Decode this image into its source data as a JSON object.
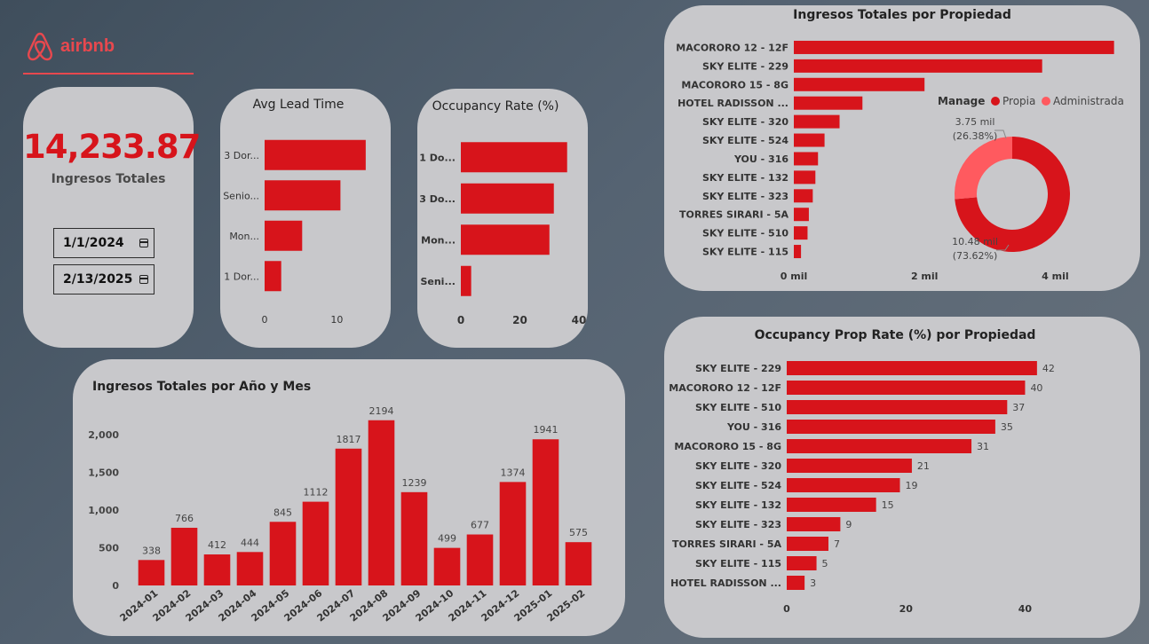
{
  "brand": {
    "name": "airbnb"
  },
  "kpi": {
    "value": "14,233.87",
    "label": "Ingresos Totales"
  },
  "dates": {
    "start": "1/1/2024",
    "end": "2/13/2025"
  },
  "colors": {
    "bar": "#d7141b",
    "owned": "#d7141b",
    "managed": "#ff5a5f",
    "card": "#c8c8cb"
  },
  "chart_data": [
    {
      "id": "lead",
      "type": "bar",
      "orientation": "horizontal",
      "title": "Avg Lead Time",
      "categories": [
        "3 Dor...",
        "Senio...",
        "Mon...",
        "1 Dor..."
      ],
      "values": [
        14,
        10.5,
        5.2,
        2.3
      ],
      "xlim": [
        0,
        15
      ],
      "ticks": [
        0,
        10
      ],
      "tick_labels": [
        "0",
        "10"
      ]
    },
    {
      "id": "occ",
      "type": "bar",
      "orientation": "horizontal",
      "title": "Occupancy Rate (%)",
      "categories": [
        "1 Do...",
        "3 Do...",
        "Mon...",
        "Seni..."
      ],
      "values": [
        36,
        31.5,
        30,
        3.5
      ],
      "xlim": [
        0,
        40
      ],
      "ticks": [
        0,
        20,
        40
      ],
      "tick_labels": [
        "0",
        "20",
        "40"
      ]
    },
    {
      "id": "monthly",
      "type": "bar",
      "title": "Ingresos Totales por Año y Mes",
      "categories": [
        "2024-01",
        "2024-02",
        "2024-03",
        "2024-04",
        "2024-05",
        "2024-06",
        "2024-07",
        "2024-08",
        "2024-09",
        "2024-10",
        "2024-11",
        "2024-12",
        "2025-01",
        "2025-02"
      ],
      "values": [
        338,
        766,
        412,
        444,
        845,
        1112,
        1817,
        2194,
        1239,
        499,
        677,
        1374,
        1941,
        575
      ],
      "ylim": [
        0,
        2250
      ],
      "ticks": [
        0,
        500,
        1000,
        1500,
        2000
      ],
      "tick_labels": [
        "0",
        "500",
        "1,000",
        "1,500",
        "2,000"
      ]
    },
    {
      "id": "revprop",
      "type": "bar",
      "orientation": "horizontal",
      "title": "Ingresos Totales por Propiedad",
      "categories": [
        "MACORORO 12 - 12F",
        "SKY ELITE - 229",
        "MACORORO 15 - 8G",
        "HOTEL RADISSON ...",
        "SKY ELITE - 320",
        "SKY ELITE - 524",
        "YOU - 316",
        "SKY ELITE - 132",
        "SKY ELITE - 323",
        "TORRES SIRARI - 5A",
        "SKY ELITE - 510",
        "SKY ELITE - 115"
      ],
      "values": [
        4900,
        3800,
        2000,
        1050,
        700,
        470,
        370,
        330,
        290,
        230,
        210,
        110
      ],
      "xlim": [
        0,
        5000
      ],
      "ticks": [
        0,
        2000,
        4000
      ],
      "tick_labels": [
        "0 mil",
        "2 mil",
        "4 mil"
      ]
    },
    {
      "id": "donut",
      "type": "pie",
      "legend_title": "Manage",
      "legend_position": "top",
      "series": [
        {
          "name": "Propia",
          "value": 10.48,
          "label": "10.48 mil",
          "pct": "(73.62%)"
        },
        {
          "name": "Administrada",
          "value": 3.75,
          "label": "3.75 mil",
          "pct": "(26.38%)"
        }
      ]
    },
    {
      "id": "occprop",
      "type": "bar",
      "orientation": "horizontal",
      "title": "Occupancy Prop Rate (%) por Propiedad",
      "categories": [
        "SKY ELITE - 229",
        "MACORORO 12 - 12F",
        "SKY ELITE - 510",
        "YOU - 316",
        "MACORORO 15 - 8G",
        "SKY ELITE - 320",
        "SKY ELITE - 524",
        "SKY ELITE - 132",
        "SKY ELITE - 323",
        "TORRES SIRARI - 5A",
        "SKY ELITE - 115",
        "HOTEL RADISSON ..."
      ],
      "values": [
        42,
        40,
        37,
        35,
        31,
        21,
        19,
        15,
        9,
        7,
        5,
        3
      ],
      "xlim": [
        0,
        45
      ],
      "ticks": [
        0,
        20,
        40
      ],
      "tick_labels": [
        "0",
        "20",
        "40"
      ]
    }
  ]
}
